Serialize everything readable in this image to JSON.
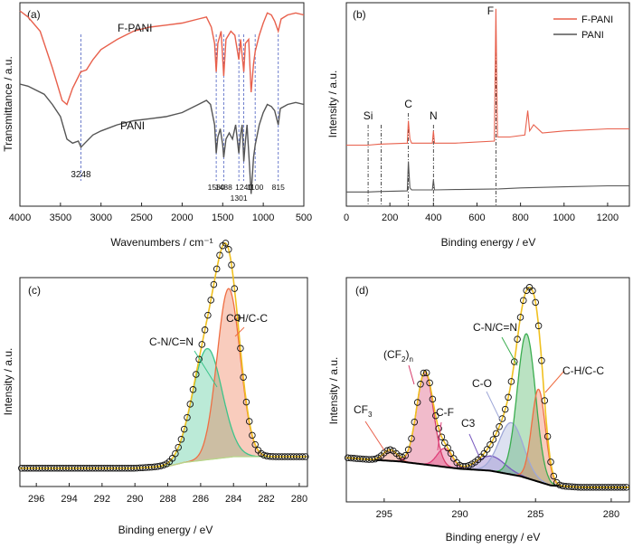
{
  "chart_data": [
    {
      "panel_label": "(a)",
      "type": "line",
      "xlabel": "Wavenumbers / cm⁻¹",
      "ylabel": "Transmittance / a.u.",
      "xlim": [
        4000,
        500
      ],
      "x_ticks": [
        "4000",
        "3500",
        "3000",
        "2500",
        "2000",
        "1500",
        "1000",
        "500"
      ],
      "series": [
        {
          "name": "F-PANI",
          "color": "#e8604c",
          "points": [
            [
              4000,
              0.96
            ],
            [
              3900,
              0.93
            ],
            [
              3750,
              0.86
            ],
            [
              3600,
              0.68
            ],
            [
              3480,
              0.52
            ],
            [
              3420,
              0.5
            ],
            [
              3350,
              0.58
            ],
            [
              3250,
              0.66
            ],
            [
              3180,
              0.67
            ],
            [
              3100,
              0.72
            ],
            [
              3000,
              0.77
            ],
            [
              2800,
              0.82
            ],
            [
              2600,
              0.86
            ],
            [
              2400,
              0.88
            ],
            [
              2200,
              0.89
            ],
            [
              2000,
              0.9
            ],
            [
              1800,
              0.92
            ],
            [
              1700,
              0.93
            ],
            [
              1640,
              0.88
            ],
            [
              1600,
              0.8
            ],
            [
              1580,
              0.66
            ],
            [
              1560,
              0.8
            ],
            [
              1520,
              0.86
            ],
            [
              1488,
              0.64
            ],
            [
              1460,
              0.82
            ],
            [
              1400,
              0.86
            ],
            [
              1350,
              0.84
            ],
            [
              1301,
              0.72
            ],
            [
              1280,
              0.82
            ],
            [
              1240,
              0.66
            ],
            [
              1220,
              0.8
            ],
            [
              1180,
              0.82
            ],
            [
              1150,
              0.56
            ],
            [
              1120,
              0.7
            ],
            [
              1100,
              0.76
            ],
            [
              1050,
              0.84
            ],
            [
              1000,
              0.9
            ],
            [
              950,
              0.95
            ],
            [
              900,
              0.94
            ],
            [
              860,
              0.91
            ],
            [
              815,
              0.86
            ],
            [
              780,
              0.92
            ],
            [
              700,
              0.94
            ],
            [
              600,
              0.95
            ],
            [
              500,
              0.94
            ]
          ]
        },
        {
          "name": "PANI",
          "color": "#555555",
          "points": [
            [
              4000,
              0.6
            ],
            [
              3900,
              0.59
            ],
            [
              3700,
              0.55
            ],
            [
              3600,
              0.5
            ],
            [
              3500,
              0.44
            ],
            [
              3420,
              0.33
            ],
            [
              3350,
              0.31
            ],
            [
              3280,
              0.32
            ],
            [
              3248,
              0.29
            ],
            [
              3200,
              0.31
            ],
            [
              3100,
              0.35
            ],
            [
              3000,
              0.37
            ],
            [
              2800,
              0.4
            ],
            [
              2600,
              0.42
            ],
            [
              2400,
              0.43
            ],
            [
              2200,
              0.44
            ],
            [
              2000,
              0.46
            ],
            [
              1800,
              0.5
            ],
            [
              1700,
              0.52
            ],
            [
              1650,
              0.5
            ],
            [
              1600,
              0.4
            ],
            [
              1580,
              0.26
            ],
            [
              1560,
              0.34
            ],
            [
              1530,
              0.38
            ],
            [
              1500,
              0.3
            ],
            [
              1488,
              0.24
            ],
            [
              1460,
              0.33
            ],
            [
              1420,
              0.36
            ],
            [
              1380,
              0.33
            ],
            [
              1340,
              0.4
            ],
            [
              1301,
              0.26
            ],
            [
              1280,
              0.35
            ],
            [
              1260,
              0.4
            ],
            [
              1240,
              0.22
            ],
            [
              1220,
              0.32
            ],
            [
              1200,
              0.4
            ],
            [
              1170,
              0.2
            ],
            [
              1150,
              0.06
            ],
            [
              1120,
              0.24
            ],
            [
              1100,
              0.3
            ],
            [
              1050,
              0.4
            ],
            [
              1000,
              0.46
            ],
            [
              950,
              0.5
            ],
            [
              900,
              0.49
            ],
            [
              860,
              0.47
            ],
            [
              815,
              0.4
            ],
            [
              790,
              0.48
            ],
            [
              700,
              0.5
            ],
            [
              600,
              0.51
            ],
            [
              500,
              0.5
            ]
          ]
        }
      ],
      "peak_labels": [
        {
          "x": 3248,
          "label": "3248"
        },
        {
          "x": 1580,
          "label": "1580"
        },
        {
          "x": 1488,
          "label": "1488"
        },
        {
          "x": 1301,
          "label": "1301"
        },
        {
          "x": 1240,
          "label": "1240"
        },
        {
          "x": 1100,
          "label": "1100"
        },
        {
          "x": 815,
          "label": "815"
        }
      ],
      "annotations": [
        "F-PANI",
        "PANI"
      ]
    },
    {
      "panel_label": "(b)",
      "type": "line",
      "xlabel": "Binding energy / eV",
      "ylabel": "Intensity / a.u.",
      "xlim": [
        0,
        1300
      ],
      "x_ticks": [
        "0",
        "200",
        "400",
        "600",
        "800",
        "1000",
        "1200"
      ],
      "legend": "top-right",
      "series": [
        {
          "name": "F-PANI",
          "color": "#e8604c",
          "points": [
            [
              0,
              0.3
            ],
            [
              100,
              0.3
            ],
            [
              150,
              0.305
            ],
            [
              280,
              0.31
            ],
            [
              285,
              0.42
            ],
            [
              292,
              0.33
            ],
            [
              300,
              0.31
            ],
            [
              395,
              0.31
            ],
            [
              400,
              0.37
            ],
            [
              405,
              0.31
            ],
            [
              500,
              0.31
            ],
            [
              680,
              0.32
            ],
            [
              687,
              0.97
            ],
            [
              694,
              0.34
            ],
            [
              750,
              0.34
            ],
            [
              820,
              0.35
            ],
            [
              833,
              0.47
            ],
            [
              842,
              0.37
            ],
            [
              860,
              0.4
            ],
            [
              900,
              0.36
            ],
            [
              1000,
              0.37
            ],
            [
              1200,
              0.38
            ],
            [
              1300,
              0.38
            ]
          ]
        },
        {
          "name": "PANI",
          "color": "#555555",
          "points": [
            [
              0,
              0.07
            ],
            [
              100,
              0.07
            ],
            [
              150,
              0.072
            ],
            [
              280,
              0.075
            ],
            [
              285,
              0.22
            ],
            [
              292,
              0.09
            ],
            [
              300,
              0.08
            ],
            [
              395,
              0.08
            ],
            [
              400,
              0.13
            ],
            [
              405,
              0.08
            ],
            [
              500,
              0.082
            ],
            [
              700,
              0.085
            ],
            [
              800,
              0.09
            ],
            [
              1000,
              0.095
            ],
            [
              1200,
              0.1
            ],
            [
              1300,
              0.1
            ]
          ]
        }
      ],
      "peak_labels": [
        {
          "x": 100,
          "label": "Si"
        },
        {
          "x": 285,
          "label": "C"
        },
        {
          "x": 400,
          "label": "N"
        },
        {
          "x": 687,
          "label": "F"
        }
      ]
    },
    {
      "panel_label": "(c)",
      "type": "line",
      "xlabel": "Binding energy / eV",
      "ylabel": "Intensity / a.u.",
      "xlim": [
        297,
        279.5
      ],
      "x_ticks": [
        "296",
        "294",
        "292",
        "290",
        "288",
        "286",
        "284",
        "282",
        "280"
      ],
      "background": [
        [
          297,
          0.02
        ],
        [
          290,
          0.02
        ],
        [
          288,
          0.03
        ],
        [
          287,
          0.05
        ],
        [
          286,
          0.06
        ],
        [
          285,
          0.07
        ],
        [
          284,
          0.08
        ],
        [
          283,
          0.08
        ],
        [
          282,
          0.08
        ]
      ],
      "components": [
        {
          "name": "C-N/C=N",
          "center": 285.6,
          "height": 0.58,
          "sigma": 0.9,
          "color": "#3cc48b"
        },
        {
          "name": "C-H/C-C",
          "center": 284.3,
          "height": 0.88,
          "sigma": 0.7,
          "color": "#ef6e43"
        }
      ],
      "annotations": [
        "C-N/C=N",
        "C-H/C-C"
      ]
    },
    {
      "panel_label": "(d)",
      "type": "line",
      "xlabel": "Binding energy / eV",
      "ylabel": "Intensity / a.u.",
      "xlim": [
        297.5,
        278.8
      ],
      "x_ticks": [
        "295",
        "290",
        "285",
        "280"
      ],
      "background": [
        [
          297.5,
          0.04
        ],
        [
          296,
          0.03
        ],
        [
          294,
          0.02
        ],
        [
          292,
          0.0
        ],
        [
          290,
          -0.02
        ],
        [
          288,
          -0.03
        ],
        [
          286,
          -0.06
        ],
        [
          284,
          -0.11
        ],
        [
          282,
          -0.12
        ],
        [
          280,
          -0.12
        ]
      ],
      "components": [
        {
          "name": "CF3",
          "center": 294.6,
          "height": 0.06,
          "sigma": 0.45,
          "color": "#e8604c"
        },
        {
          "name": "(CF2)n",
          "center": 292.3,
          "height": 0.5,
          "sigma": 0.55,
          "color": "#d63b6a"
        },
        {
          "name": "C-F",
          "center": 291.0,
          "height": 0.1,
          "sigma": 0.5,
          "color": "#e0407a"
        },
        {
          "name": "C3",
          "center": 287.9,
          "height": 0.08,
          "sigma": 0.9,
          "color": "#7a5cc0"
        },
        {
          "name": "C-O",
          "center": 286.6,
          "height": 0.28,
          "sigma": 0.8,
          "color": "#9fa8d8"
        },
        {
          "name": "C-N/C=N",
          "center": 285.6,
          "height": 0.78,
          "sigma": 0.6,
          "color": "#3aad4f"
        },
        {
          "name": "C-H/C-C",
          "center": 284.8,
          "height": 0.5,
          "sigma": 0.45,
          "color": "#ef6e43"
        }
      ],
      "annotations": [
        "CF",
        "3",
        "(CF",
        "2",
        ")",
        "n",
        "C-F",
        "C3",
        "C-O",
        "C-N/C=N",
        "C-H/C-C"
      ]
    }
  ]
}
